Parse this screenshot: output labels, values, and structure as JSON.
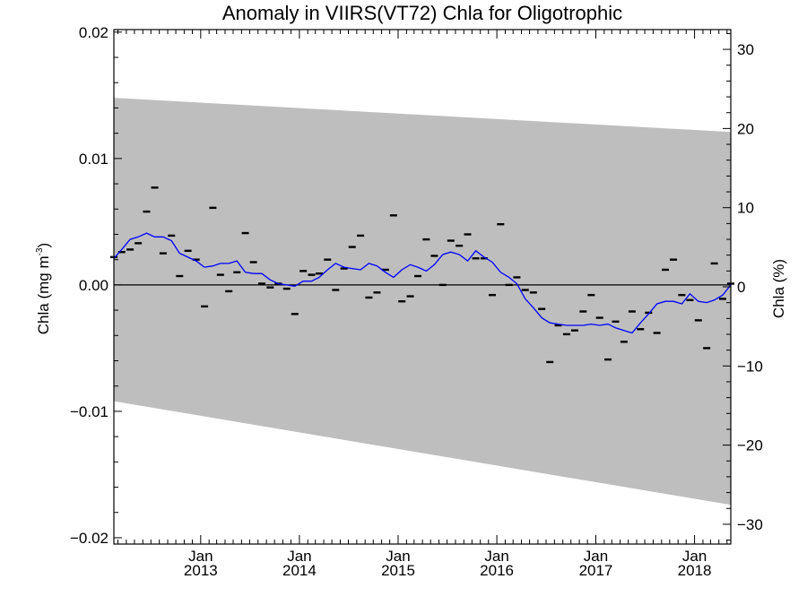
{
  "chart_data": {
    "type": "line",
    "title": "Anomaly in VIIRS(VT72) Chla for Oligotrophic",
    "ylabel_left_main": "Chla (mg m",
    "ylabel_left_sup": "-3",
    "ylabel_left_close": ")",
    "ylabel_right": "Chla (%)",
    "ylim_left": [
      -0.0205,
      0.0202
    ],
    "ylim_right": [
      -32.5,
      32.5
    ],
    "xlim": [
      "2012-02-15",
      "2018-05-15"
    ],
    "yticks_left": [
      {
        "value": 0.02,
        "label": "0.02"
      },
      {
        "value": 0.01,
        "label": "0.01"
      },
      {
        "value": 0.0,
        "label": "0.00"
      },
      {
        "value": -0.01,
        "label": "−0.01"
      },
      {
        "value": -0.02,
        "label": "−0.02"
      }
    ],
    "yticks_right": [
      {
        "value": 30,
        "label": "30"
      },
      {
        "value": 20,
        "label": "20"
      },
      {
        "value": 10,
        "label": "10"
      },
      {
        "value": 0,
        "label": "0"
      },
      {
        "value": -10,
        "label": "−10"
      },
      {
        "value": -20,
        "label": "−20"
      },
      {
        "value": -30,
        "label": "−30"
      }
    ],
    "xticks": [
      {
        "date": "2013-01-01",
        "month": "Jan",
        "year": "2013"
      },
      {
        "date": "2014-01-01",
        "month": "Jan",
        "year": "2014"
      },
      {
        "date": "2015-01-01",
        "month": "Jan",
        "year": "2015"
      },
      {
        "date": "2016-01-01",
        "month": "Jan",
        "year": "2016"
      },
      {
        "date": "2017-01-01",
        "month": "Jan",
        "year": "2017"
      },
      {
        "date": "2018-01-01",
        "month": "Jan",
        "year": "2018"
      }
    ],
    "uncertainty_band": {
      "x": [
        "2012-02-15",
        "2018-05-15"
      ],
      "upper": [
        0.0148,
        0.0121
      ],
      "lower": [
        -0.0092,
        -0.0174
      ],
      "color": "#bebebe"
    },
    "zero_line": 0.0,
    "series": [
      {
        "kind": "monthly_anomaly_markers",
        "color": "#000000",
        "x": [
          "2012-02-15",
          "2012-03-15",
          "2012-04-15",
          "2012-05-15",
          "2012-06-15",
          "2012-07-15",
          "2012-08-15",
          "2012-09-15",
          "2012-10-15",
          "2012-11-15",
          "2012-12-15",
          "2013-01-15",
          "2013-02-15",
          "2013-03-15",
          "2013-04-15",
          "2013-05-15",
          "2013-06-15",
          "2013-07-15",
          "2013-08-15",
          "2013-09-15",
          "2013-10-15",
          "2013-11-15",
          "2013-12-15",
          "2014-01-15",
          "2014-02-15",
          "2014-03-15",
          "2014-04-15",
          "2014-05-15",
          "2014-06-15",
          "2014-07-15",
          "2014-08-15",
          "2014-09-15",
          "2014-10-15",
          "2014-11-15",
          "2014-12-15",
          "2015-01-15",
          "2015-02-15",
          "2015-03-15",
          "2015-04-15",
          "2015-05-15",
          "2015-06-15",
          "2015-07-15",
          "2015-08-15",
          "2015-09-15",
          "2015-10-15",
          "2015-11-15",
          "2015-12-15",
          "2016-01-15",
          "2016-02-15",
          "2016-03-15",
          "2016-04-15",
          "2016-05-15",
          "2016-06-15",
          "2016-07-15",
          "2016-08-15",
          "2016-09-15",
          "2016-10-15",
          "2016-11-15",
          "2016-12-15",
          "2017-01-15",
          "2017-02-15",
          "2017-03-15",
          "2017-04-15",
          "2017-05-15",
          "2017-06-15",
          "2017-07-15",
          "2017-08-15",
          "2017-09-15",
          "2017-10-15",
          "2017-11-15",
          "2017-12-15",
          "2018-01-15",
          "2018-02-15",
          "2018-03-15",
          "2018-04-15",
          "2018-05-15"
        ],
        "values": [
          0.0022,
          0.0026,
          0.0028,
          0.0033,
          0.0058,
          0.0077,
          0.0025,
          0.0039,
          0.0007,
          0.0027,
          0.002,
          -0.0017,
          0.0061,
          0.0008,
          -0.0005,
          0.001,
          0.0041,
          0.0018,
          0.0001,
          -0.0002,
          0.0001,
          -0.0003,
          -0.0023,
          0.0011,
          0.0008,
          0.0009,
          0.002,
          -0.0004,
          0.0013,
          0.003,
          0.0039,
          -0.001,
          -0.0006,
          0.0012,
          0.0055,
          -0.0013,
          -0.0009,
          0.0007,
          0.0036,
          0.0023,
          0.0,
          0.0035,
          0.0031,
          0.004,
          0.0021,
          0.0021,
          -0.0008,
          0.0048,
          0.0,
          0.0006,
          -0.0004,
          -0.0006,
          -0.0019,
          -0.0061,
          -0.0032,
          -0.0039,
          -0.0036,
          -0.0021,
          -0.0008,
          -0.0026,
          -0.0059,
          -0.0029,
          -0.0045,
          -0.0021,
          -0.0035,
          -0.0022,
          -0.0038,
          0.0012,
          0.002,
          -0.0008,
          -0.0012,
          -0.0028,
          -0.005,
          0.0017,
          -0.0011,
          0.0001
        ]
      },
      {
        "kind": "smoothed_line",
        "color": "#0000ff",
        "x": [
          "2012-02-15",
          "2012-03-15",
          "2012-04-15",
          "2012-05-15",
          "2012-06-15",
          "2012-07-15",
          "2012-08-15",
          "2012-09-15",
          "2012-10-15",
          "2012-11-15",
          "2012-12-15",
          "2013-01-15",
          "2013-02-15",
          "2013-03-15",
          "2013-04-15",
          "2013-05-15",
          "2013-06-15",
          "2013-07-15",
          "2013-08-15",
          "2013-09-15",
          "2013-10-15",
          "2013-11-15",
          "2013-12-15",
          "2014-01-15",
          "2014-02-15",
          "2014-03-15",
          "2014-04-15",
          "2014-05-15",
          "2014-06-15",
          "2014-07-15",
          "2014-08-15",
          "2014-09-15",
          "2014-10-15",
          "2014-11-15",
          "2014-12-15",
          "2015-01-15",
          "2015-02-15",
          "2015-03-15",
          "2015-04-15",
          "2015-05-15",
          "2015-06-15",
          "2015-07-15",
          "2015-08-15",
          "2015-09-15",
          "2015-10-15",
          "2015-11-15",
          "2015-12-15",
          "2016-01-15",
          "2016-02-15",
          "2016-03-15",
          "2016-04-15",
          "2016-05-15",
          "2016-06-15",
          "2016-07-15",
          "2016-08-15",
          "2016-09-15",
          "2016-10-15",
          "2016-11-15",
          "2016-12-15",
          "2017-01-15",
          "2017-02-15",
          "2017-03-15",
          "2017-04-15",
          "2017-05-15",
          "2017-06-15",
          "2017-07-15",
          "2017-08-15",
          "2017-09-15",
          "2017-10-15",
          "2017-11-15",
          "2017-12-15",
          "2018-01-15",
          "2018-02-15",
          "2018-03-15",
          "2018-04-15",
          "2018-05-15"
        ],
        "values": [
          0.0021,
          0.0028,
          0.0036,
          0.0038,
          0.0041,
          0.0038,
          0.0038,
          0.0035,
          0.0025,
          0.0022,
          0.0019,
          0.0014,
          0.0015,
          0.0017,
          0.0017,
          0.0019,
          0.001,
          0.0009,
          0.0009,
          0.0004,
          0.0001,
          0.0,
          -0.0001,
          0.0003,
          0.0003,
          0.0006,
          0.0012,
          0.0017,
          0.0014,
          0.0013,
          0.0012,
          0.0017,
          0.0015,
          0.001,
          0.0006,
          0.0012,
          0.0016,
          0.0014,
          0.0011,
          0.0016,
          0.0024,
          0.0026,
          0.0024,
          0.0019,
          0.0027,
          0.0022,
          0.0018,
          0.001,
          0.0006,
          0.0001,
          -0.0011,
          -0.0018,
          -0.0026,
          -0.003,
          -0.0031,
          -0.0032,
          -0.0032,
          -0.0032,
          -0.0031,
          -0.0032,
          -0.0031,
          -0.0034,
          -0.0036,
          -0.0038,
          -0.003,
          -0.0023,
          -0.0015,
          -0.0013,
          -0.0013,
          -0.0015,
          -0.0007,
          -0.0013,
          -0.0014,
          -0.0012,
          -0.0008,
          0.0
        ]
      }
    ]
  }
}
